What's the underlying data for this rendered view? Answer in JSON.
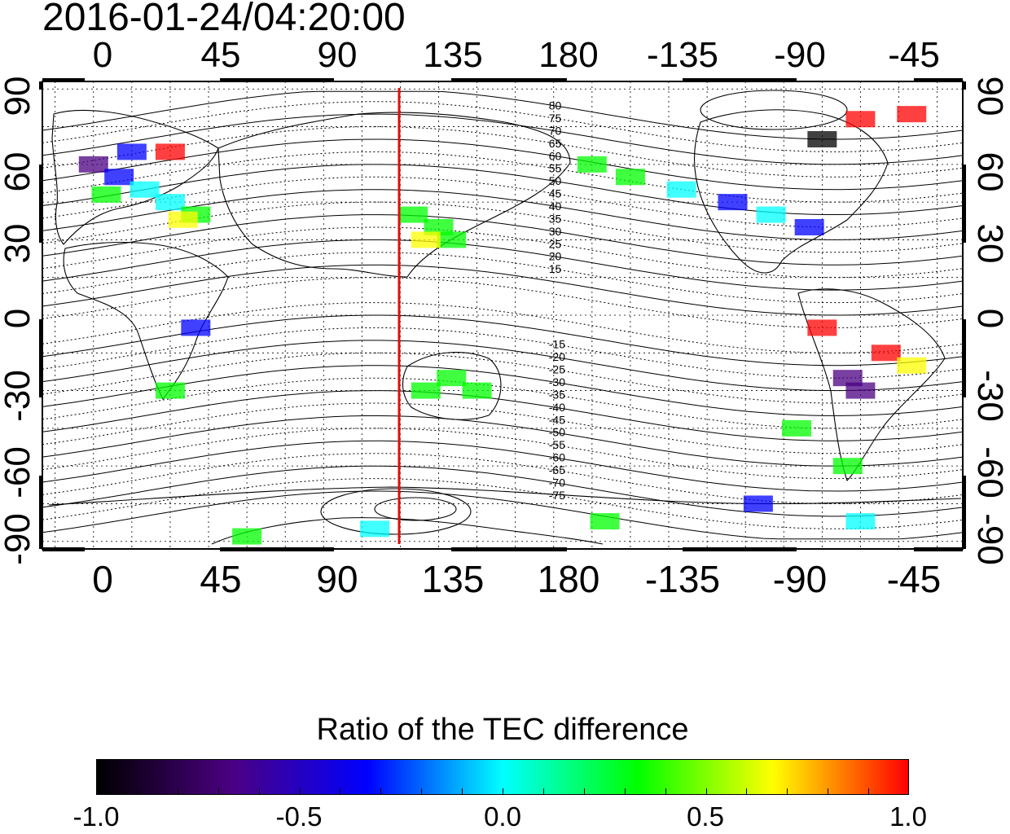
{
  "timestamp": "2016-01-24/04:20:00",
  "map": {
    "type": "global TEC difference ratio map",
    "projection": "equirectangular",
    "lon_ticks": [
      "0",
      "45",
      "90",
      "135",
      "180",
      "-135",
      "-90",
      "-45"
    ],
    "lon_tick_values": [
      0,
      45,
      90,
      135,
      180,
      225,
      270,
      315
    ],
    "lat_ticks_left": [
      "90",
      "60",
      "30",
      "0",
      "-30",
      "-60",
      "-90"
    ],
    "lat_ticks_right": [
      "90",
      "60",
      "30",
      "0",
      "-30",
      "-60",
      "-90"
    ],
    "lat_tick_values": [
      90,
      60,
      30,
      0,
      -30,
      -60,
      -90
    ],
    "lon_range_deg": [
      -20,
      340
    ],
    "lat_range_deg": [
      -93,
      93
    ],
    "grid": "dotted, every 15 degrees",
    "magnetic_latitude_labels": [
      "80",
      "75",
      "70",
      "65",
      "60",
      "55",
      "50",
      "45",
      "40",
      "35",
      "30",
      "25",
      "20",
      "15",
      "-15",
      "-20",
      "-25",
      "-30",
      "-35",
      "-40",
      "-45",
      "-50",
      "-55",
      "-60",
      "-65",
      "-70",
      "-75"
    ],
    "terminator_longitude_deg": 114,
    "colors": {
      "terminator": "#e01010",
      "coast": "#000000",
      "grid": "#000000"
    }
  },
  "colorbar": {
    "title": "Ratio of the TEC difference",
    "ticks": [
      "-1.0",
      "-0.5",
      "0.0",
      "0.5",
      "1.0"
    ],
    "tick_values": [
      -1.0,
      -0.5,
      0.0,
      0.5,
      1.0
    ],
    "range": [
      -1.0,
      1.0
    ],
    "colors": [
      "#000000",
      "#4b0082",
      "#0000ff",
      "#00ffff",
      "#00ff00",
      "#ffff00",
      "#ff0000"
    ]
  }
}
